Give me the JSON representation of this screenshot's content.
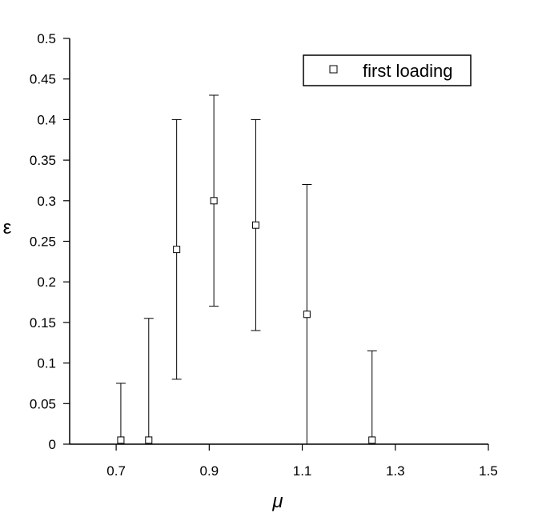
{
  "chart_data": {
    "type": "scatter",
    "xlabel": "μ",
    "ylabel": "ε",
    "xlim": [
      0.6,
      1.5
    ],
    "ylim": [
      0,
      0.5
    ],
    "xticks": [
      "0.7",
      "0.9",
      "1.1",
      "1.3",
      "1.5"
    ],
    "yticks": [
      "0",
      "0.05",
      "0.1",
      "0.15",
      "0.2",
      "0.25",
      "0.3",
      "0.35",
      "0.4",
      "0.45",
      "0.5"
    ],
    "grid": false,
    "legend_position": "top-right",
    "series": [
      {
        "name": "first loading",
        "marker": "open-square",
        "points": [
          {
            "x": 0.71,
            "y": 0.005,
            "err_low": 0.0,
            "err_high": 0.075
          },
          {
            "x": 0.77,
            "y": 0.005,
            "err_low": 0.0,
            "err_high": 0.155
          },
          {
            "x": 0.83,
            "y": 0.24,
            "err_low": 0.08,
            "err_high": 0.4
          },
          {
            "x": 0.91,
            "y": 0.3,
            "err_low": 0.17,
            "err_high": 0.43
          },
          {
            "x": 1.0,
            "y": 0.27,
            "err_low": 0.14,
            "err_high": 0.4
          },
          {
            "x": 1.11,
            "y": 0.16,
            "err_low": 0.0,
            "err_high": 0.32
          },
          {
            "x": 1.25,
            "y": 0.005,
            "err_low": 0.0,
            "err_high": 0.115
          }
        ]
      }
    ]
  }
}
